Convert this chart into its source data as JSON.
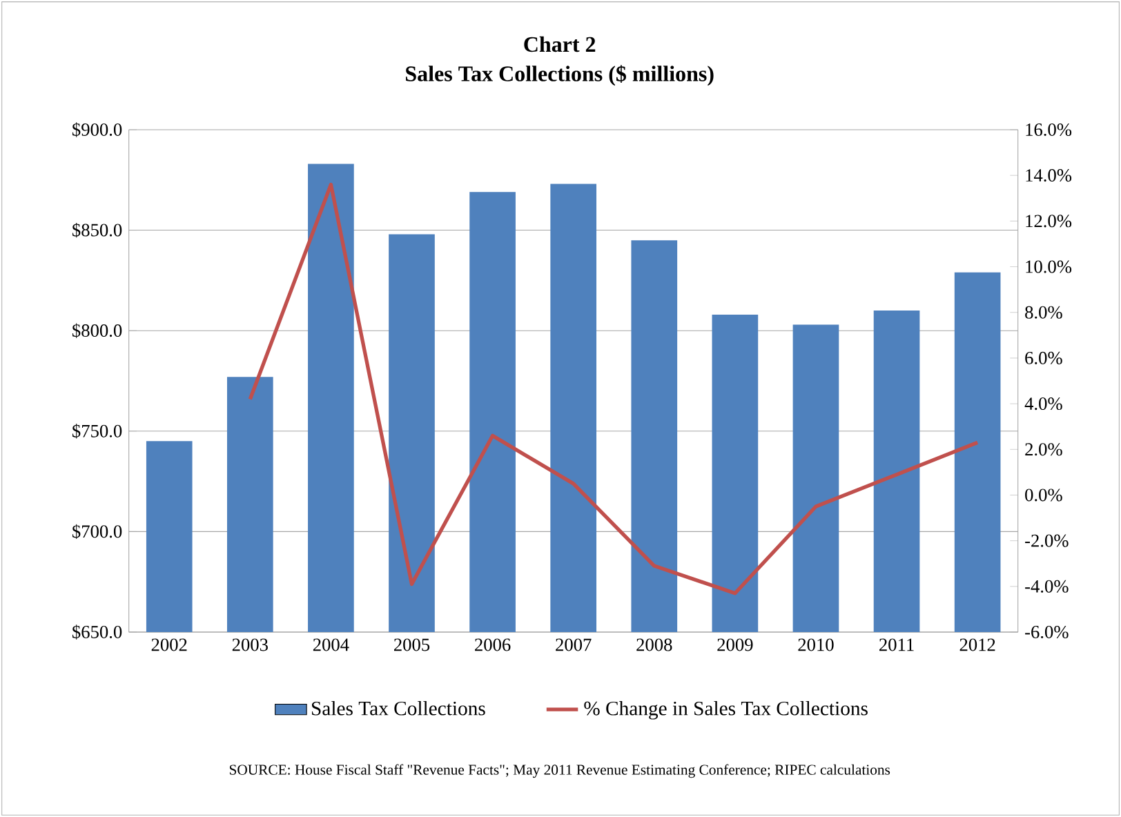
{
  "chart_data": {
    "type": "bar",
    "title": "Chart 2",
    "subtitle": "Sales Tax Collections ($ millions)",
    "categories": [
      "2002",
      "2003",
      "2004",
      "2005",
      "2006",
      "2007",
      "2008",
      "2009",
      "2010",
      "2011",
      "2012"
    ],
    "series": [
      {
        "name": "Sales Tax Collections",
        "color": "#4f81bd",
        "values": [
          745,
          777,
          883,
          848,
          869,
          873,
          845,
          808,
          803,
          810,
          829
        ]
      },
      {
        "name": "% Change in Sales Tax Collections",
        "type": "line",
        "axis": "y2",
        "color": "#c0504d",
        "values": [
          null,
          4.2,
          13.6,
          -3.9,
          2.6,
          0.5,
          -3.1,
          -4.3,
          -0.5,
          0.9,
          2.3
        ]
      }
    ],
    "ylim": [
      650,
      900
    ],
    "yticks": [
      {
        "value": 650,
        "label": "$650.0"
      },
      {
        "value": 700,
        "label": "$700.0"
      },
      {
        "value": 750,
        "label": "$750.0"
      },
      {
        "value": 800,
        "label": "$800.0"
      },
      {
        "value": 850,
        "label": "$850.0"
      },
      {
        "value": 900,
        "label": "$900.0"
      }
    ],
    "y2lim": [
      -6,
      16
    ],
    "y2ticks": [
      {
        "value": -6,
        "label": "-6.0%"
      },
      {
        "value": -4,
        "label": "-4.0%"
      },
      {
        "value": -2,
        "label": "-2.0%"
      },
      {
        "value": 0,
        "label": "0.0%"
      },
      {
        "value": 2,
        "label": "2.0%"
      },
      {
        "value": 4,
        "label": "4.0%"
      },
      {
        "value": 6,
        "label": "6.0%"
      },
      {
        "value": 8,
        "label": "8.0%"
      },
      {
        "value": 10,
        "label": "10.0%"
      },
      {
        "value": 12,
        "label": "12.0%"
      },
      {
        "value": 14,
        "label": "14.0%"
      },
      {
        "value": 16,
        "label": "16.0%"
      }
    ],
    "grid": "y",
    "legend": "bottom",
    "annotations": [
      "SOURCE:  House Fiscal Staff \"Revenue Facts\"; May 2011  Revenue Estimating Conference; RIPEC  calculations"
    ]
  }
}
